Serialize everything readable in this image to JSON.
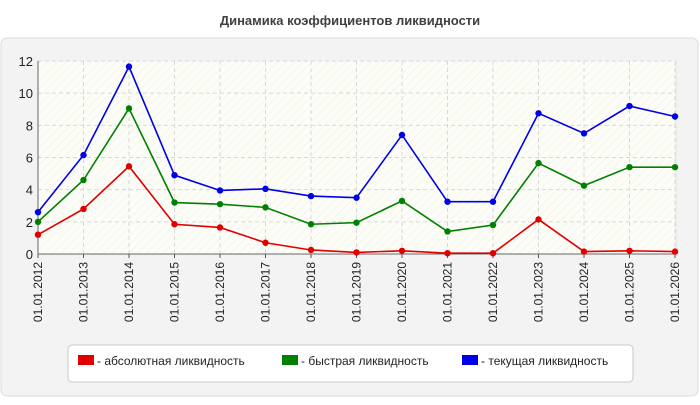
{
  "chart_data": {
    "type": "line",
    "title": "Динамика коэффициентов ликвидности",
    "xlabel": "",
    "ylabel": "",
    "ylim": [
      0,
      12
    ],
    "yticks": [
      0,
      2,
      4,
      6,
      8,
      10,
      12
    ],
    "grid": true,
    "legend_position": "bottom",
    "categories": [
      "01.01.2012",
      "01.01.2013",
      "01.01.2014",
      "01.01.2015",
      "01.01.2016",
      "01.01.2017",
      "01.01.2018",
      "01.01.2019",
      "01.01.2020",
      "01.01.2021",
      "01.01.2022",
      "01.01.2023",
      "01.01.2024",
      "01.01.2025",
      "01.01.2026"
    ],
    "series": [
      {
        "name": "- абсолютная ликвидность",
        "color": "#e00000",
        "values": [
          1.2,
          2.8,
          5.45,
          1.85,
          1.65,
          0.7,
          0.25,
          0.1,
          0.2,
          0.05,
          0.05,
          2.15,
          0.15,
          0.2,
          0.15
        ]
      },
      {
        "name": "- быстрая ликвидность",
        "color": "#008000",
        "values": [
          2.0,
          4.6,
          9.05,
          3.2,
          3.1,
          2.9,
          1.85,
          1.95,
          3.3,
          1.4,
          1.8,
          5.65,
          4.25,
          5.4,
          5.4
        ]
      },
      {
        "name": "- текущая ликвидность",
        "color": "#0000e8",
        "values": [
          2.6,
          6.15,
          11.65,
          4.9,
          3.95,
          4.05,
          3.6,
          3.5,
          7.4,
          3.25,
          3.25,
          8.75,
          7.5,
          9.2,
          8.55
        ]
      }
    ]
  }
}
